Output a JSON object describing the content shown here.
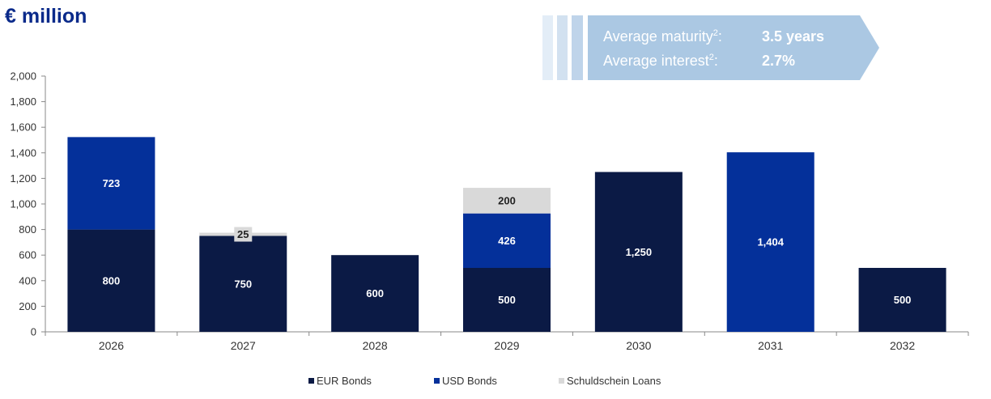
{
  "header": {
    "title": "€ million"
  },
  "kpi": {
    "maturity_label": "Average maturity",
    "maturity_sup": "2",
    "maturity_colon": ":",
    "maturity_value": "3.5 years",
    "interest_label": "Average interest",
    "interest_sup": "2",
    "interest_colon": ":",
    "interest_value": "2.7%"
  },
  "colors": {
    "eur": "#0b1a45",
    "usd": "#04309a",
    "schuldschein": "#d9d9d9",
    "kpi_bg": "#abc8e3"
  },
  "chart_data": {
    "type": "bar",
    "stacked": true,
    "categories": [
      "2026",
      "2027",
      "2028",
      "2029",
      "2030",
      "2031",
      "2032"
    ],
    "series": [
      {
        "name": "EUR Bonds",
        "color": "#0b1a45",
        "label_color": "#ffffff",
        "values": [
          800,
          750,
          600,
          500,
          1250,
          0,
          500
        ],
        "labels": [
          "800",
          "750",
          "600",
          "500",
          "1,250",
          "",
          "500"
        ]
      },
      {
        "name": "USD Bonds",
        "color": "#04309a",
        "label_color": "#ffffff",
        "values": [
          723,
          0,
          0,
          426,
          0,
          1404,
          0
        ],
        "labels": [
          "723",
          "",
          "",
          "426",
          "",
          "1,404",
          ""
        ]
      },
      {
        "name": "Schuldschein Loans",
        "color": "#d9d9d9",
        "label_color": "#222222",
        "values": [
          0,
          25,
          0,
          200,
          0,
          0,
          0
        ],
        "labels": [
          "",
          "25",
          "",
          "200",
          "",
          "",
          ""
        ]
      }
    ],
    "ylim": [
      0,
      2000
    ],
    "yticks": [
      0,
      200,
      400,
      600,
      800,
      1000,
      1200,
      1400,
      1600,
      1800,
      2000
    ],
    "ytick_labels": [
      "0",
      "200",
      "400",
      "600",
      "800",
      "1,000",
      "1,200",
      "1,400",
      "1,600",
      "1,800",
      "2,000"
    ],
    "legend_position": "bottom",
    "grid": false
  }
}
